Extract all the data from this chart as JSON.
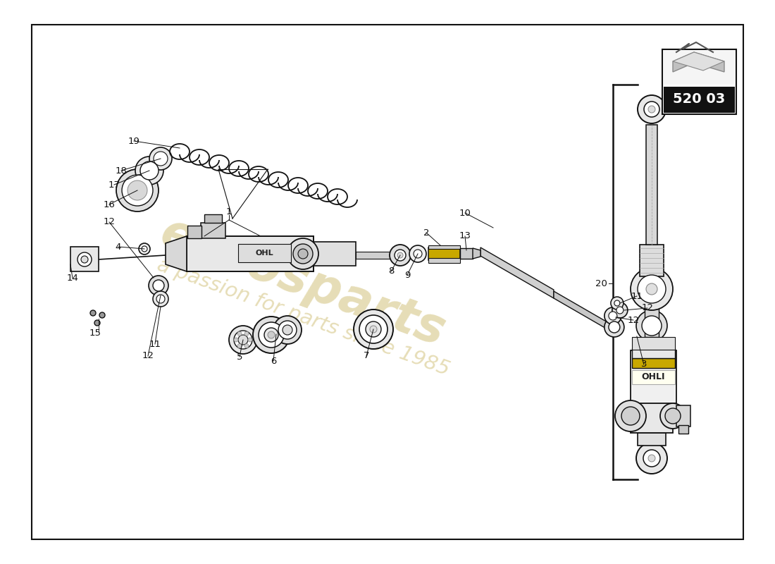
{
  "background_color": "#ffffff",
  "border_color": "#222222",
  "line_color": "#111111",
  "text_color": "#111111",
  "watermark_color": "#c8b45e",
  "watermark_alpha": 0.45,
  "part_number_code": "520 03",
  "page_bounds": [
    45,
    35,
    1010,
    730
  ]
}
